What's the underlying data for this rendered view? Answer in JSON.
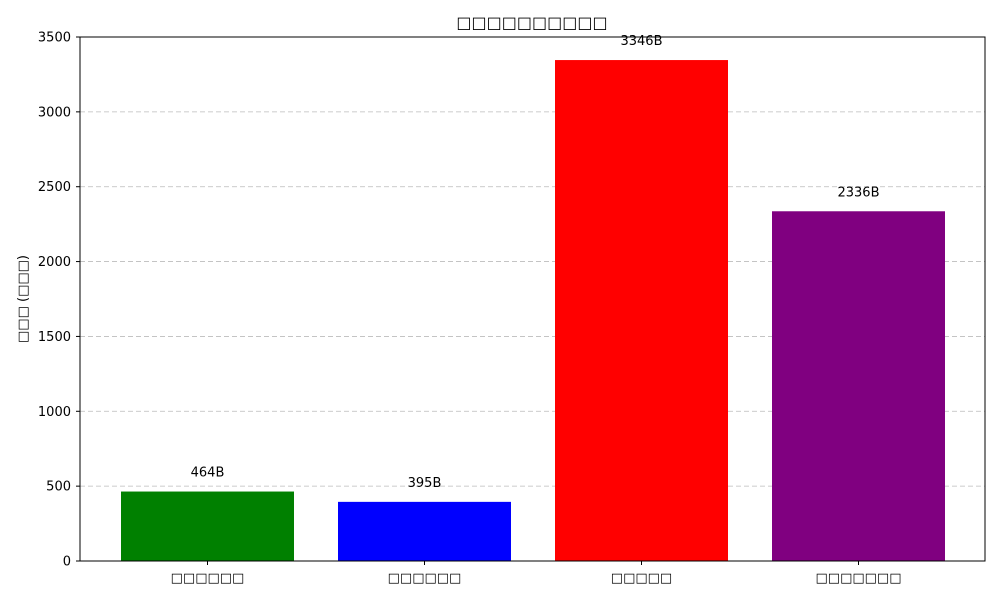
{
  "chart_data": {
    "type": "bar",
    "title": "□□□□□□□□□□",
    "xlabel": "",
    "ylabel": "□□□ (□□□)",
    "categories": [
      "□□□□□□",
      "□□□□□□",
      "□□□□□",
      "□□□□□□□"
    ],
    "values": [
      464,
      395,
      3346,
      2336
    ],
    "value_labels": [
      "464B",
      "395B",
      "3346B",
      "2336B"
    ],
    "colors": [
      "#008000",
      "#0000ff",
      "#ff0000",
      "#800080"
    ],
    "ylim": [
      0,
      3500
    ],
    "yticks": [
      0,
      500,
      1000,
      1500,
      2000,
      2500,
      3000,
      3500
    ],
    "grid": "y-dashed",
    "legend": "none"
  }
}
